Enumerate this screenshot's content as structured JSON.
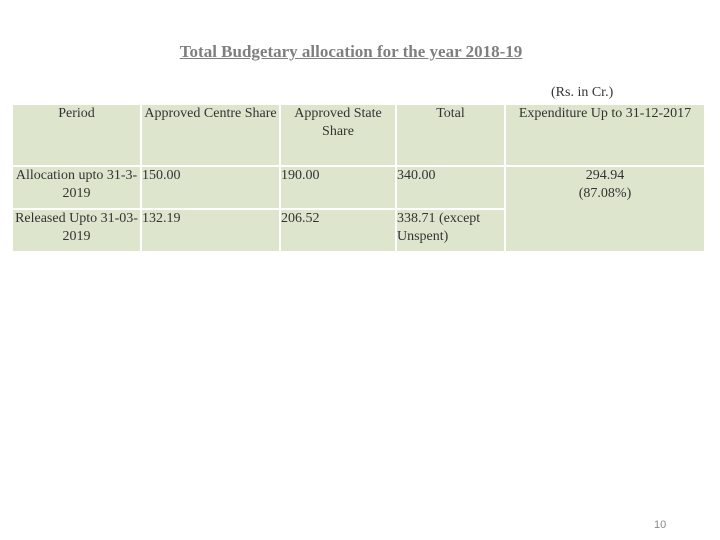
{
  "title": "Total Budgetary allocation for the year 2018-19",
  "units": "(Rs. in Cr.)",
  "table": {
    "headers": [
      "Period",
      "Approved Centre Share",
      "Approved State Share",
      "Total",
      "Expenditure Up to 31-12-2017"
    ],
    "rows": [
      {
        "period": "Allocation upto 31-3-2019",
        "centre": "150.00",
        "state": "190.00",
        "total": "340.00"
      },
      {
        "period": "Released Upto 31-03-2019",
        "centre": "132.19",
        "state": "206.52",
        "total": "338.71 (except Unspent)"
      }
    ],
    "expenditure": {
      "value": "294.94",
      "percent": "(87.08%)"
    }
  },
  "page_number": "10"
}
